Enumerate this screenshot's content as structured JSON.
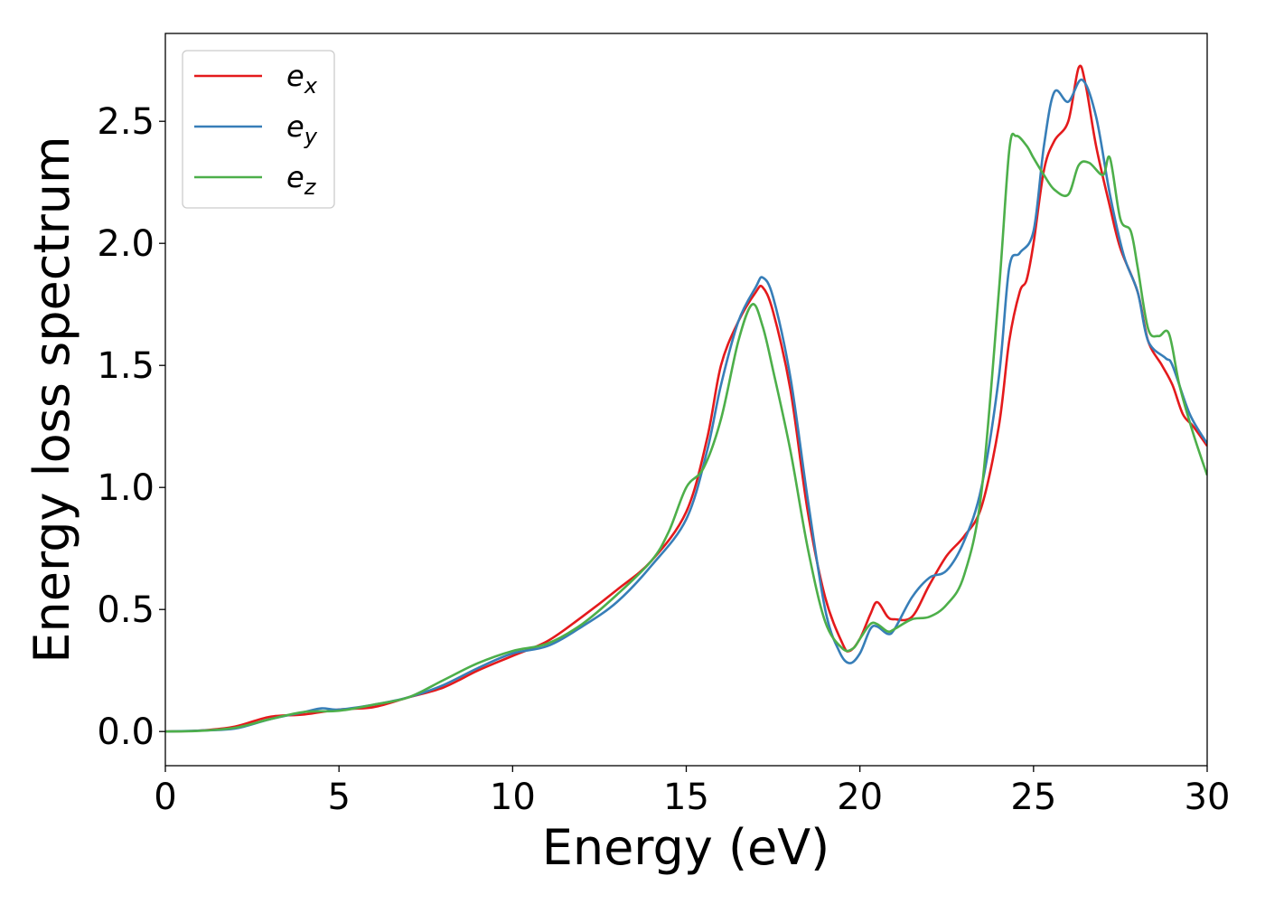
{
  "chart_data": {
    "type": "line",
    "xlabel": "Energy (eV)",
    "ylabel": "Energy loss spectrum",
    "xlim": [
      0,
      30
    ],
    "ylim": [
      -0.14,
      2.86
    ],
    "xticks": [
      0,
      5,
      10,
      15,
      20,
      25,
      30
    ],
    "xtick_labels": [
      "0",
      "5",
      "10",
      "15",
      "20",
      "25",
      "30"
    ],
    "yticks": [
      0.0,
      0.5,
      1.0,
      1.5,
      2.0,
      2.5
    ],
    "ytick_labels": [
      "0.0",
      "0.5",
      "1.0",
      "1.5",
      "2.0",
      "2.5"
    ],
    "grid": false,
    "legend_position": "upper-left",
    "series": [
      {
        "name": "e_x",
        "legend_base": "e",
        "legend_sub": "x",
        "color": "#e41a1c",
        "x": [
          0,
          1,
          2,
          3,
          4,
          5,
          6,
          7,
          8,
          9,
          10,
          11,
          12,
          13,
          14,
          15,
          15.6,
          16,
          16.5,
          17,
          17.2,
          17.5,
          18,
          18.5,
          19,
          19.5,
          19.7,
          20,
          20.3,
          20.5,
          20.8,
          21,
          21.5,
          22,
          22.5,
          23,
          23.5,
          24,
          24.3,
          24.6,
          24.8,
          25,
          25.3,
          25.6,
          26,
          26.3,
          26.5,
          26.8,
          27.2,
          27.5,
          28,
          28.3,
          28.7,
          29,
          29.3,
          29.6,
          30
        ],
        "y": [
          0,
          0.004,
          0.02,
          0.06,
          0.07,
          0.09,
          0.1,
          0.14,
          0.18,
          0.25,
          0.31,
          0.37,
          0.47,
          0.58,
          0.7,
          0.9,
          1.2,
          1.5,
          1.68,
          1.8,
          1.82,
          1.72,
          1.4,
          0.9,
          0.55,
          0.36,
          0.33,
          0.38,
          0.48,
          0.53,
          0.47,
          0.46,
          0.47,
          0.6,
          0.72,
          0.8,
          0.92,
          1.25,
          1.6,
          1.8,
          1.85,
          2.0,
          2.3,
          2.42,
          2.5,
          2.72,
          2.65,
          2.4,
          2.15,
          1.98,
          1.8,
          1.6,
          1.5,
          1.42,
          1.3,
          1.25,
          1.17
        ]
      },
      {
        "name": "e_y",
        "legend_base": "e",
        "legend_sub": "y",
        "color": "#377eb8",
        "x": [
          0,
          1,
          2,
          3,
          4,
          4.5,
          5,
          6,
          7,
          8,
          9,
          10,
          11,
          12,
          13,
          14,
          15,
          15.6,
          16,
          16.5,
          17,
          17.2,
          17.5,
          18,
          18.5,
          19,
          19.4,
          19.7,
          20,
          20.3,
          20.5,
          20.8,
          21,
          21.5,
          22,
          22.5,
          23,
          23.5,
          24,
          24.3,
          24.6,
          25,
          25.3,
          25.6,
          26,
          26.4,
          26.8,
          27.2,
          27.6,
          28,
          28.3,
          28.8,
          29,
          29.5,
          30
        ],
        "y": [
          0,
          0.004,
          0.012,
          0.05,
          0.08,
          0.095,
          0.09,
          0.11,
          0.14,
          0.19,
          0.26,
          0.32,
          0.35,
          0.43,
          0.53,
          0.68,
          0.87,
          1.15,
          1.42,
          1.68,
          1.82,
          1.86,
          1.78,
          1.45,
          0.95,
          0.5,
          0.33,
          0.28,
          0.32,
          0.42,
          0.43,
          0.4,
          0.42,
          0.55,
          0.63,
          0.66,
          0.78,
          1.0,
          1.45,
          1.9,
          1.96,
          2.05,
          2.4,
          2.62,
          2.58,
          2.67,
          2.52,
          2.2,
          1.95,
          1.8,
          1.6,
          1.53,
          1.5,
          1.3,
          1.18
        ]
      },
      {
        "name": "e_z",
        "legend_base": "e",
        "legend_sub": "z",
        "color": "#4daf4a",
        "x": [
          0,
          1,
          2,
          3,
          4,
          5,
          6,
          7,
          8,
          9,
          10,
          11,
          12,
          13,
          14,
          14.5,
          15,
          15.5,
          16,
          16.5,
          16.9,
          17.2,
          17.5,
          18,
          18.5,
          19,
          19.5,
          19.8,
          20,
          20.3,
          20.5,
          20.8,
          21,
          21.5,
          22,
          22.5,
          23,
          23.5,
          24,
          24.3,
          24.5,
          24.8,
          25,
          25.3,
          25.6,
          26,
          26.3,
          26.6,
          27,
          27.2,
          27.5,
          27.8,
          28,
          28.3,
          28.6,
          28.9,
          29.2,
          29.6,
          30
        ],
        "y": [
          0,
          0.003,
          0.015,
          0.05,
          0.08,
          0.085,
          0.11,
          0.14,
          0.21,
          0.28,
          0.33,
          0.36,
          0.44,
          0.56,
          0.7,
          0.82,
          1.0,
          1.08,
          1.28,
          1.6,
          1.75,
          1.66,
          1.48,
          1.15,
          0.75,
          0.45,
          0.34,
          0.34,
          0.38,
          0.44,
          0.44,
          0.41,
          0.42,
          0.46,
          0.47,
          0.52,
          0.64,
          0.98,
          1.8,
          2.38,
          2.44,
          2.4,
          2.35,
          2.28,
          2.22,
          2.2,
          2.32,
          2.33,
          2.28,
          2.35,
          2.1,
          2.05,
          1.9,
          1.65,
          1.62,
          1.63,
          1.42,
          1.22,
          1.05
        ]
      }
    ]
  }
}
